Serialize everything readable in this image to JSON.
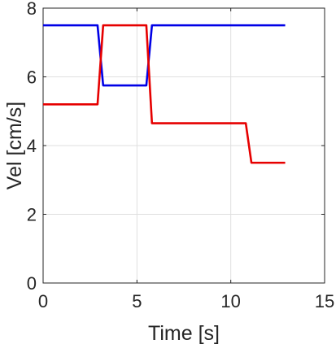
{
  "chart_data": {
    "type": "line",
    "xlabel": "Time [s]",
    "ylabel": "Vel [cm/s]",
    "xlim": [
      0,
      15
    ],
    "ylim": [
      0,
      8
    ],
    "xticks": [
      0,
      5,
      10,
      15
    ],
    "yticks": [
      0,
      2,
      4,
      6,
      8
    ],
    "xtick_labels": [
      "0",
      "5",
      "10",
      "15"
    ],
    "ytick_labels": [
      "0",
      "2",
      "4",
      "6",
      "8"
    ],
    "grid": true,
    "series": [
      {
        "color": "#0000e6",
        "x": [
          0,
          2.9,
          3.2,
          5.5,
          5.8,
          12.9
        ],
        "y": [
          7.5,
          7.5,
          5.75,
          5.75,
          7.5,
          7.5
        ]
      },
      {
        "color": "#e60000",
        "x": [
          0,
          2.9,
          3.2,
          5.5,
          5.8,
          10.8,
          11.1,
          12.9
        ],
        "y": [
          5.2,
          5.2,
          7.5,
          7.5,
          4.65,
          4.65,
          3.5,
          3.5
        ]
      }
    ]
  }
}
